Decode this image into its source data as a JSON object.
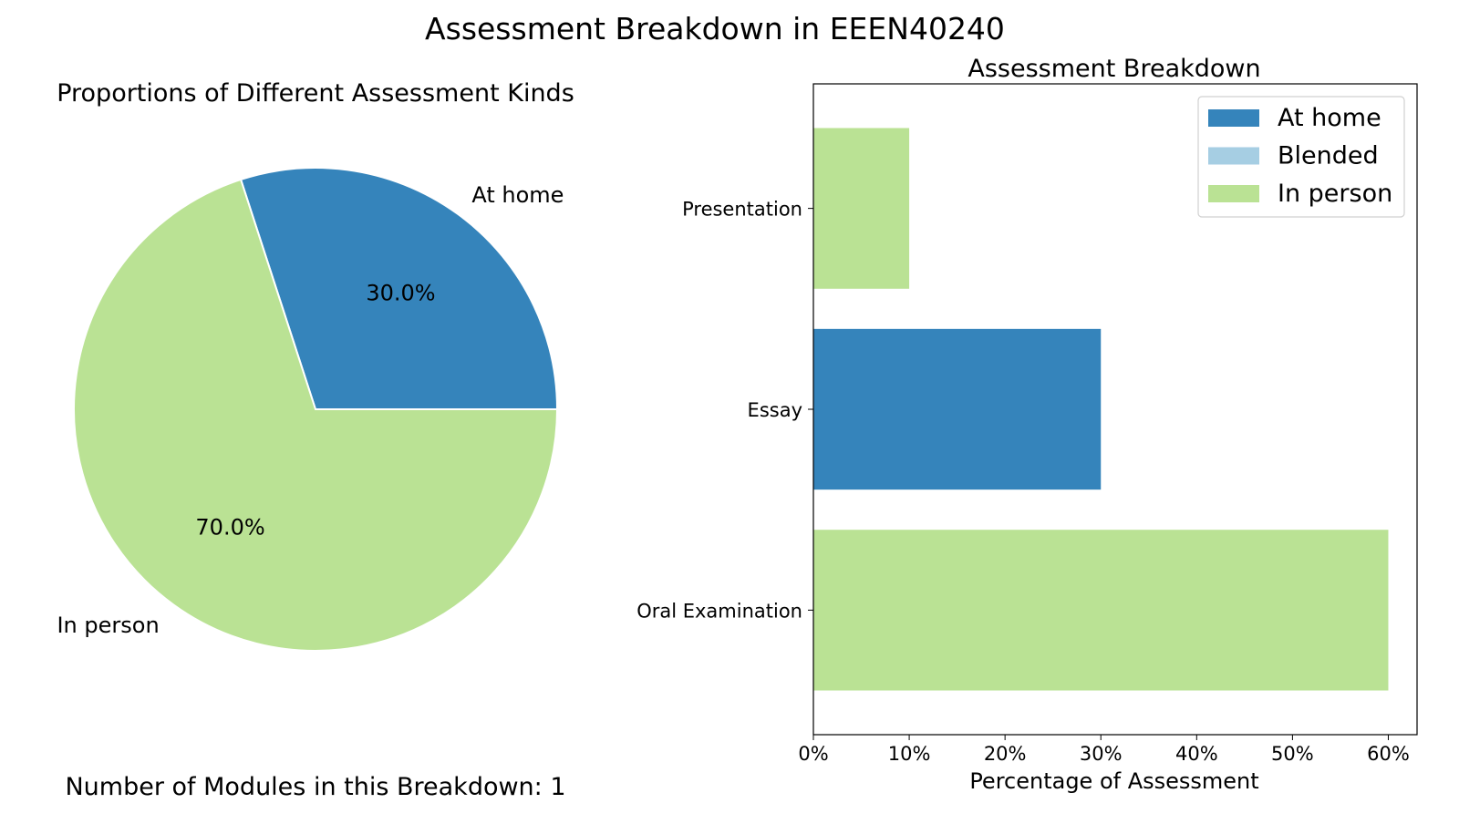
{
  "figure": {
    "title": "Assessment Breakdown in EEEN40240",
    "footer": "Number of Modules in this Breakdown: 1"
  },
  "colors": {
    "at_home": "#3584bb",
    "blended": "#a6cee3",
    "in_person": "#bae294"
  },
  "chart_data": [
    {
      "type": "pie",
      "title": "Proportions of Different Assessment Kinds",
      "slices": [
        {
          "label": "At home",
          "value": 30.0,
          "pct_label": "30.0%",
          "color": "#3584bb"
        },
        {
          "label": "In person",
          "value": 70.0,
          "pct_label": "70.0%",
          "color": "#bae294"
        }
      ],
      "start_angle_deg": 0,
      "direction": "counterclockwise"
    },
    {
      "type": "bar",
      "orientation": "horizontal",
      "title": "Assessment Breakdown",
      "xlabel": "Percentage of Assessment",
      "ylabel": "",
      "xlim": [
        0,
        63
      ],
      "xticks": [
        0,
        10,
        20,
        30,
        40,
        50,
        60
      ],
      "xtick_labels": [
        "0%",
        "10%",
        "20%",
        "30%",
        "40%",
        "50%",
        "60%"
      ],
      "categories": [
        "Presentation",
        "Essay",
        "Oral Examination"
      ],
      "bars": [
        {
          "category": "Presentation",
          "value": 10,
          "kind": "In person"
        },
        {
          "category": "Essay",
          "value": 30,
          "kind": "At home"
        },
        {
          "category": "Oral Examination",
          "value": 60,
          "kind": "In person"
        }
      ],
      "legend": {
        "position": "top-right",
        "entries": [
          {
            "label": "At home",
            "color": "#3584bb"
          },
          {
            "label": "Blended",
            "color": "#a6cee3"
          },
          {
            "label": "In person",
            "color": "#bae294"
          }
        ]
      }
    }
  ]
}
